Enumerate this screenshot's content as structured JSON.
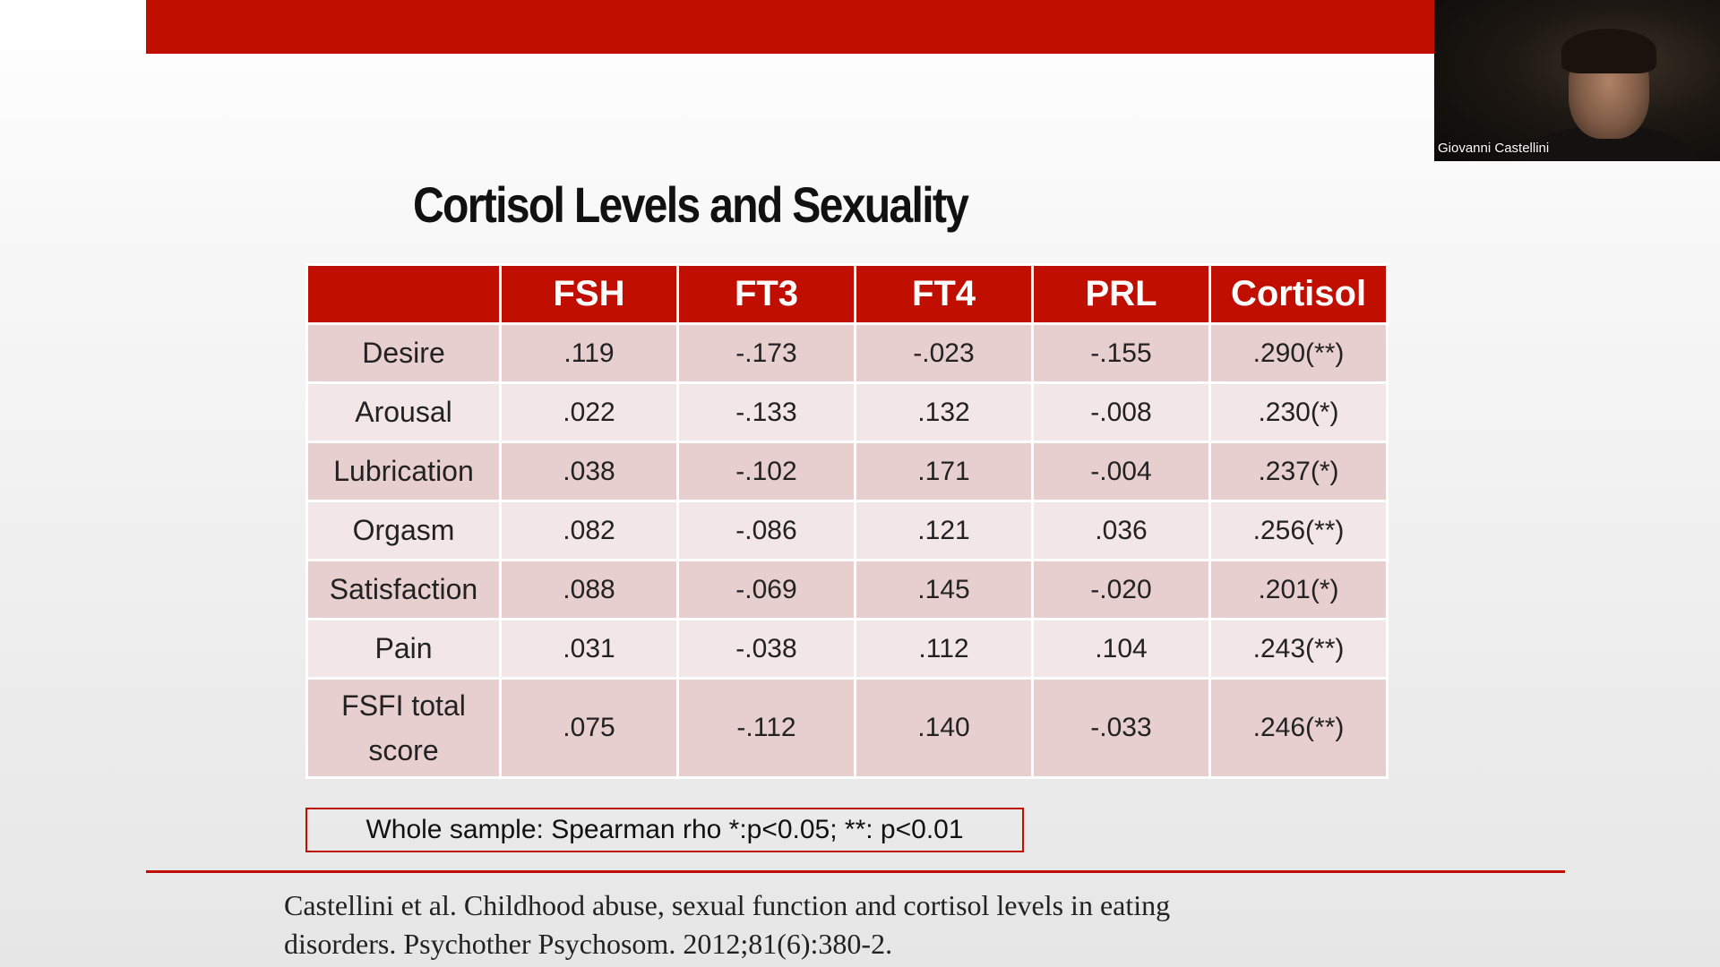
{
  "slide": {
    "title": "Cortisol Levels and Sexuality",
    "table": {
      "headers": [
        "",
        "FSH",
        "FT3",
        "FT4",
        "PRL",
        "Cortisol"
      ],
      "rows": [
        {
          "label": "Desire",
          "values": [
            ".119",
            "-.173",
            "-.023",
            "-.155",
            ".290(**)"
          ]
        },
        {
          "label": "Arousal",
          "values": [
            ".022",
            "-.133",
            ".132",
            "-.008",
            ".230(*)"
          ]
        },
        {
          "label": "Lubrication",
          "values": [
            ".038",
            "-.102",
            ".171",
            "-.004",
            ".237(*)"
          ]
        },
        {
          "label": "Orgasm",
          "values": [
            ".082",
            "-.086",
            ".121",
            ".036",
            ".256(**)"
          ]
        },
        {
          "label": "Satisfaction",
          "values": [
            ".088",
            "-.069",
            ".145",
            "-.020",
            ".201(*)"
          ]
        },
        {
          "label": "Pain",
          "values": [
            ".031",
            "-.038",
            ".112",
            ".104",
            ".243(**)"
          ]
        },
        {
          "label_line1": "FSFI total",
          "label_line2": "score",
          "values": [
            ".075",
            "-.112",
            ".140",
            "-.033",
            ".246(**)"
          ]
        }
      ]
    },
    "note": "Whole sample: Spearman rho *:p<0.05; **: p<0.01",
    "citation_line1": "Castellini et al. Childhood abuse, sexual function and cortisol levels in eating",
    "citation_line2": "disorders. Psychother Psychosom. 2012;81(6):380-2."
  },
  "video": {
    "participant_name": "Giovanni Castellini"
  },
  "colors": {
    "accent_red": "#c00f00",
    "row_odd": "#e8cfcf",
    "row_even": "#f3e6e6"
  }
}
